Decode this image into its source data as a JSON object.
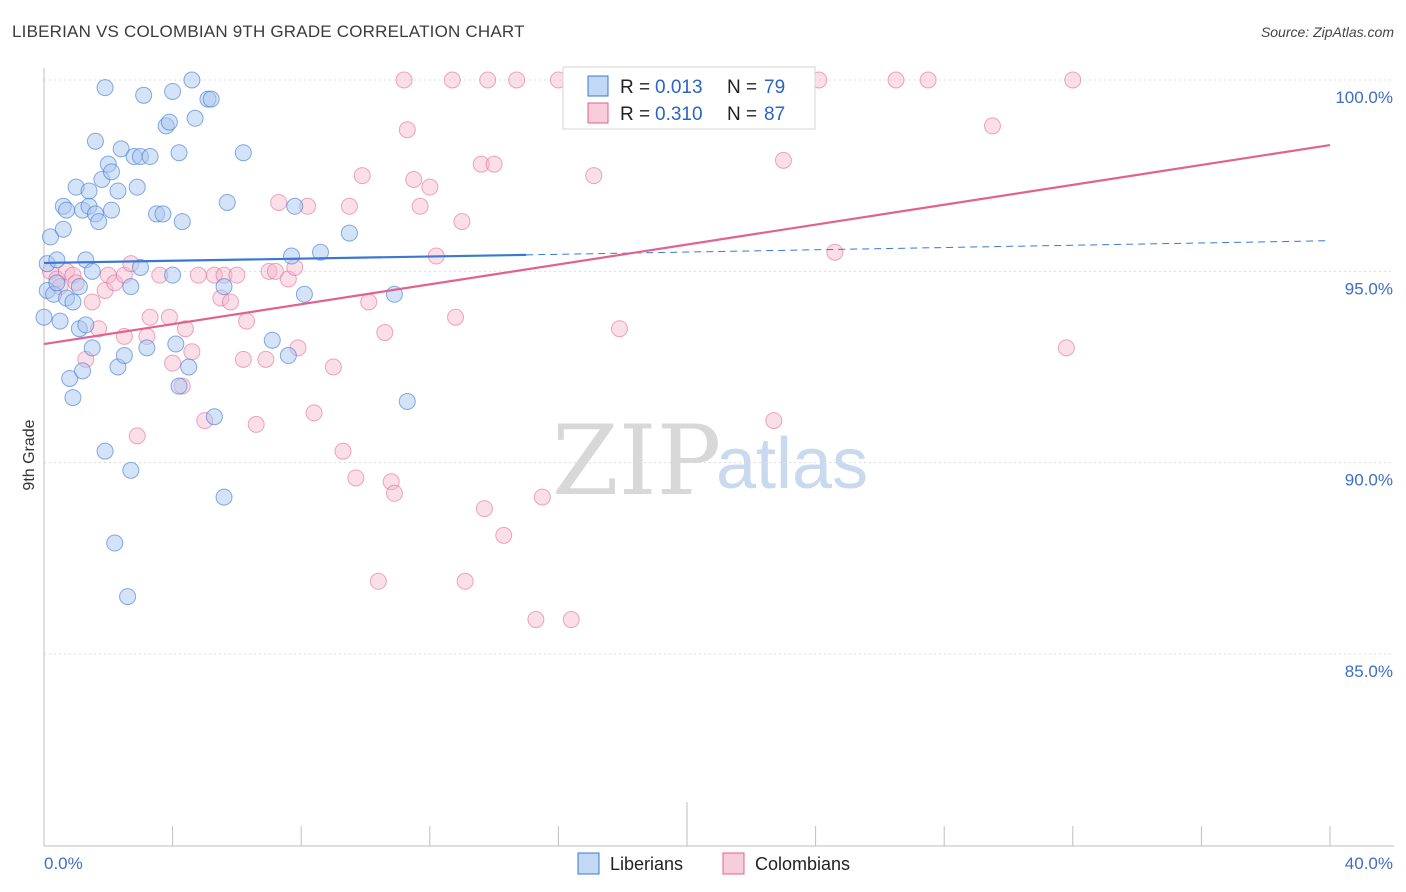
{
  "header": {
    "title": "LIBERIAN VS COLOMBIAN 9TH GRADE CORRELATION CHART",
    "source": "Source: ZipAtlas.com"
  },
  "colors": {
    "blue": "#3a78d4",
    "blue_fill": "#a9c7f0",
    "pink": "#e2628f",
    "pink_fill": "#f4b8cc"
  },
  "watermark": {
    "zip": "ZIP",
    "atlas": "atlas"
  },
  "chart_data": {
    "type": "scatter",
    "title": "LIBERIAN VS COLOMBIAN 9TH GRADE CORRELATION CHART",
    "xlabel": "",
    "ylabel": "9th Grade",
    "xlim": [
      0,
      40
    ],
    "ylim": [
      80.5,
      100.8
    ],
    "x_tick_labels": [
      "0.0%",
      "40.0%"
    ],
    "y_ticks": [
      {
        "value": 100,
        "label": "100.0%"
      },
      {
        "value": 95,
        "label": "95.0%"
      },
      {
        "value": 90,
        "label": "90.0%"
      },
      {
        "value": 85,
        "label": "85.0%"
      }
    ],
    "legend": {
      "r_label": "R =",
      "n_label": "N =",
      "entries": [
        {
          "name": "Liberians",
          "r": "0.013",
          "n": "79"
        },
        {
          "name": "Colombians",
          "r": "0.310",
          "n": "87"
        }
      ]
    },
    "series": [
      {
        "name": "Liberians",
        "trend": {
          "x0": 0,
          "y0": 95.22,
          "x1": 15,
          "y1": 95.43,
          "dash_to_x": 40,
          "dash_to_y": 95.8
        },
        "points": [
          [
            0.0,
            93.8
          ],
          [
            0.1,
            95.2
          ],
          [
            0.1,
            94.5
          ],
          [
            0.2,
            95.9
          ],
          [
            0.3,
            94.4
          ],
          [
            0.4,
            95.3
          ],
          [
            0.4,
            94.7
          ],
          [
            0.5,
            93.7
          ],
          [
            0.6,
            96.1
          ],
          [
            0.6,
            96.7
          ],
          [
            0.7,
            94.3
          ],
          [
            0.7,
            96.6
          ],
          [
            0.8,
            92.2
          ],
          [
            0.9,
            91.7
          ],
          [
            0.9,
            94.2
          ],
          [
            1.0,
            97.2
          ],
          [
            1.1,
            94.6
          ],
          [
            1.1,
            93.5
          ],
          [
            1.2,
            92.4
          ],
          [
            1.2,
            96.6
          ],
          [
            1.3,
            93.6
          ],
          [
            1.3,
            95.3
          ],
          [
            1.4,
            97.1
          ],
          [
            1.4,
            96.7
          ],
          [
            1.5,
            95.0
          ],
          [
            1.5,
            93.0
          ],
          [
            1.6,
            98.4
          ],
          [
            1.6,
            96.5
          ],
          [
            1.7,
            96.3
          ],
          [
            1.8,
            97.4
          ],
          [
            1.9,
            99.8
          ],
          [
            1.9,
            90.3
          ],
          [
            2.0,
            97.8
          ],
          [
            2.1,
            96.6
          ],
          [
            2.1,
            97.6
          ],
          [
            2.2,
            87.9
          ],
          [
            2.3,
            97.1
          ],
          [
            2.3,
            92.5
          ],
          [
            2.4,
            98.2
          ],
          [
            2.5,
            92.8
          ],
          [
            2.6,
            86.5
          ],
          [
            2.7,
            94.6
          ],
          [
            2.7,
            89.8
          ],
          [
            2.8,
            98.0
          ],
          [
            2.9,
            97.2
          ],
          [
            3.0,
            95.1
          ],
          [
            3.0,
            98.0
          ],
          [
            3.1,
            99.6
          ],
          [
            3.2,
            93.0
          ],
          [
            3.3,
            98.0
          ],
          [
            3.5,
            96.5
          ],
          [
            3.7,
            96.5
          ],
          [
            3.8,
            98.8
          ],
          [
            3.9,
            98.9
          ],
          [
            4.0,
            94.9
          ],
          [
            4.0,
            99.7
          ],
          [
            4.1,
            93.1
          ],
          [
            4.2,
            92.0
          ],
          [
            4.2,
            98.1
          ],
          [
            4.3,
            96.3
          ],
          [
            4.5,
            92.5
          ],
          [
            4.6,
            100.0
          ],
          [
            4.7,
            99.0
          ],
          [
            5.1,
            99.5
          ],
          [
            5.2,
            99.5
          ],
          [
            5.3,
            91.2
          ],
          [
            5.6,
            94.6
          ],
          [
            5.6,
            89.1
          ],
          [
            5.7,
            96.8
          ],
          [
            6.2,
            98.1
          ],
          [
            7.1,
            93.2
          ],
          [
            7.6,
            92.8
          ],
          [
            7.7,
            95.4
          ],
          [
            7.8,
            96.7
          ],
          [
            8.1,
            94.4
          ],
          [
            8.6,
            95.5
          ],
          [
            9.5,
            96.0
          ],
          [
            10.9,
            94.4
          ],
          [
            11.3,
            91.6
          ]
        ]
      },
      {
        "name": "Colombians",
        "trend": {
          "x0": 0,
          "y0": 93.1,
          "x1": 40,
          "y1": 98.3
        },
        "points": [
          [
            0.2,
            95.0
          ],
          [
            0.4,
            94.8
          ],
          [
            0.5,
            94.6
          ],
          [
            0.7,
            95.0
          ],
          [
            0.9,
            94.9
          ],
          [
            1.0,
            94.7
          ],
          [
            1.3,
            92.7
          ],
          [
            1.5,
            94.2
          ],
          [
            1.7,
            93.5
          ],
          [
            1.9,
            94.5
          ],
          [
            2.0,
            94.9
          ],
          [
            2.2,
            94.7
          ],
          [
            2.5,
            94.9
          ],
          [
            2.5,
            93.3
          ],
          [
            2.7,
            95.2
          ],
          [
            2.9,
            90.7
          ],
          [
            3.2,
            93.3
          ],
          [
            3.3,
            93.8
          ],
          [
            3.6,
            94.9
          ],
          [
            3.9,
            93.8
          ],
          [
            4.0,
            92.6
          ],
          [
            4.3,
            92.0
          ],
          [
            4.4,
            93.5
          ],
          [
            4.6,
            92.9
          ],
          [
            4.8,
            94.9
          ],
          [
            5.0,
            91.1
          ],
          [
            5.3,
            94.9
          ],
          [
            5.5,
            94.3
          ],
          [
            5.6,
            94.9
          ],
          [
            5.8,
            94.2
          ],
          [
            6.0,
            94.9
          ],
          [
            6.2,
            92.7
          ],
          [
            6.3,
            93.7
          ],
          [
            6.6,
            91.0
          ],
          [
            6.9,
            92.7
          ],
          [
            7.0,
            95.0
          ],
          [
            7.2,
            95.0
          ],
          [
            7.3,
            96.8
          ],
          [
            7.6,
            94.8
          ],
          [
            7.8,
            95.1
          ],
          [
            7.9,
            93.0
          ],
          [
            8.2,
            96.7
          ],
          [
            8.4,
            91.3
          ],
          [
            9.0,
            92.5
          ],
          [
            9.3,
            90.3
          ],
          [
            9.5,
            96.7
          ],
          [
            9.7,
            89.6
          ],
          [
            9.9,
            97.5
          ],
          [
            10.1,
            94.2
          ],
          [
            10.4,
            86.9
          ],
          [
            10.6,
            93.4
          ],
          [
            10.8,
            89.5
          ],
          [
            10.9,
            89.2
          ],
          [
            11.2,
            100.0
          ],
          [
            11.3,
            98.7
          ],
          [
            11.5,
            97.4
          ],
          [
            11.7,
            96.7
          ],
          [
            12.0,
            97.2
          ],
          [
            12.2,
            95.4
          ],
          [
            12.7,
            100.0
          ],
          [
            12.8,
            93.8
          ],
          [
            13.0,
            96.3
          ],
          [
            13.1,
            86.9
          ],
          [
            13.6,
            97.8
          ],
          [
            13.7,
            88.8
          ],
          [
            13.8,
            100.0
          ],
          [
            14.0,
            97.8
          ],
          [
            14.3,
            88.1
          ],
          [
            14.7,
            100.0
          ],
          [
            15.3,
            85.9
          ],
          [
            15.5,
            89.1
          ],
          [
            16.0,
            100.0
          ],
          [
            16.4,
            85.9
          ],
          [
            17.1,
            97.5
          ],
          [
            17.5,
            100.0
          ],
          [
            17.9,
            93.5
          ],
          [
            20.0,
            100.0
          ],
          [
            21.0,
            100.0
          ],
          [
            22.7,
            91.1
          ],
          [
            23.0,
            97.9
          ],
          [
            24.1,
            100.0
          ],
          [
            24.6,
            95.5
          ],
          [
            26.5,
            100.0
          ],
          [
            27.5,
            100.0
          ],
          [
            29.5,
            98.8
          ],
          [
            31.8,
            93.0
          ],
          [
            32.0,
            100.0
          ]
        ]
      }
    ]
  }
}
